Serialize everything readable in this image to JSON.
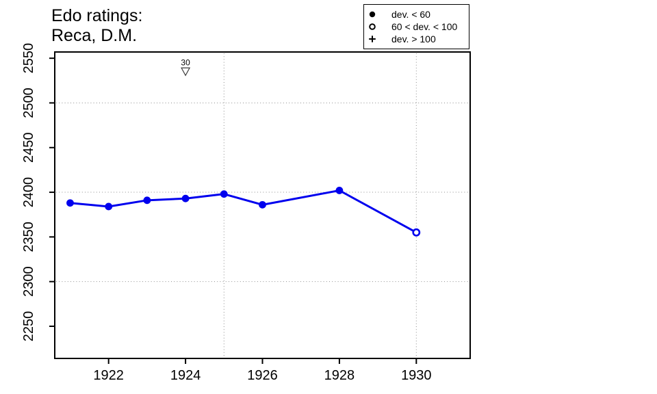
{
  "title": {
    "line1": "Edo ratings:",
    "line2": "Reca, D.M."
  },
  "legend": {
    "items": [
      {
        "symbol": "filled-circle",
        "label": "dev. < 60"
      },
      {
        "symbol": "open-circle",
        "label": "60 < dev. < 100"
      },
      {
        "symbol": "plus",
        "label": "dev. > 100"
      }
    ]
  },
  "colors": {
    "series": "#0000EE",
    "grid": "#8C8C8C",
    "axis": "#000000",
    "marker_outline": "#3A3A3A",
    "background": "#FFFFFF"
  },
  "chart_data": {
    "type": "line",
    "title": "Edo ratings: Reca, D.M.",
    "xlabel": "",
    "ylabel": "",
    "x": [
      1921,
      1922,
      1923,
      1924,
      1925,
      1926,
      1928,
      1930
    ],
    "series": [
      {
        "name": "Edo rating",
        "values": [
          2388,
          2384,
          2391,
          2393,
          2398,
          2386,
          2402,
          2355
        ],
        "point_styles": [
          "filled",
          "filled",
          "filled",
          "filled",
          "filled",
          "filled",
          "filled",
          "open"
        ]
      }
    ],
    "xticks": [
      1922,
      1924,
      1926,
      1928,
      1930
    ],
    "yticks": [
      2250,
      2300,
      2350,
      2400,
      2450,
      2500,
      2550
    ],
    "grid_x": [
      1925,
      1930
    ],
    "grid_y": [
      2300,
      2400,
      2500
    ],
    "xlim": [
      1920.6,
      1931.4
    ],
    "ylim": [
      2214,
      2557
    ],
    "grid": "dotted",
    "legend_position": "top-right-outside",
    "annotations": [
      {
        "x": 1924,
        "y": 2535,
        "label": "30",
        "marker": "triangle-down-open"
      }
    ]
  }
}
